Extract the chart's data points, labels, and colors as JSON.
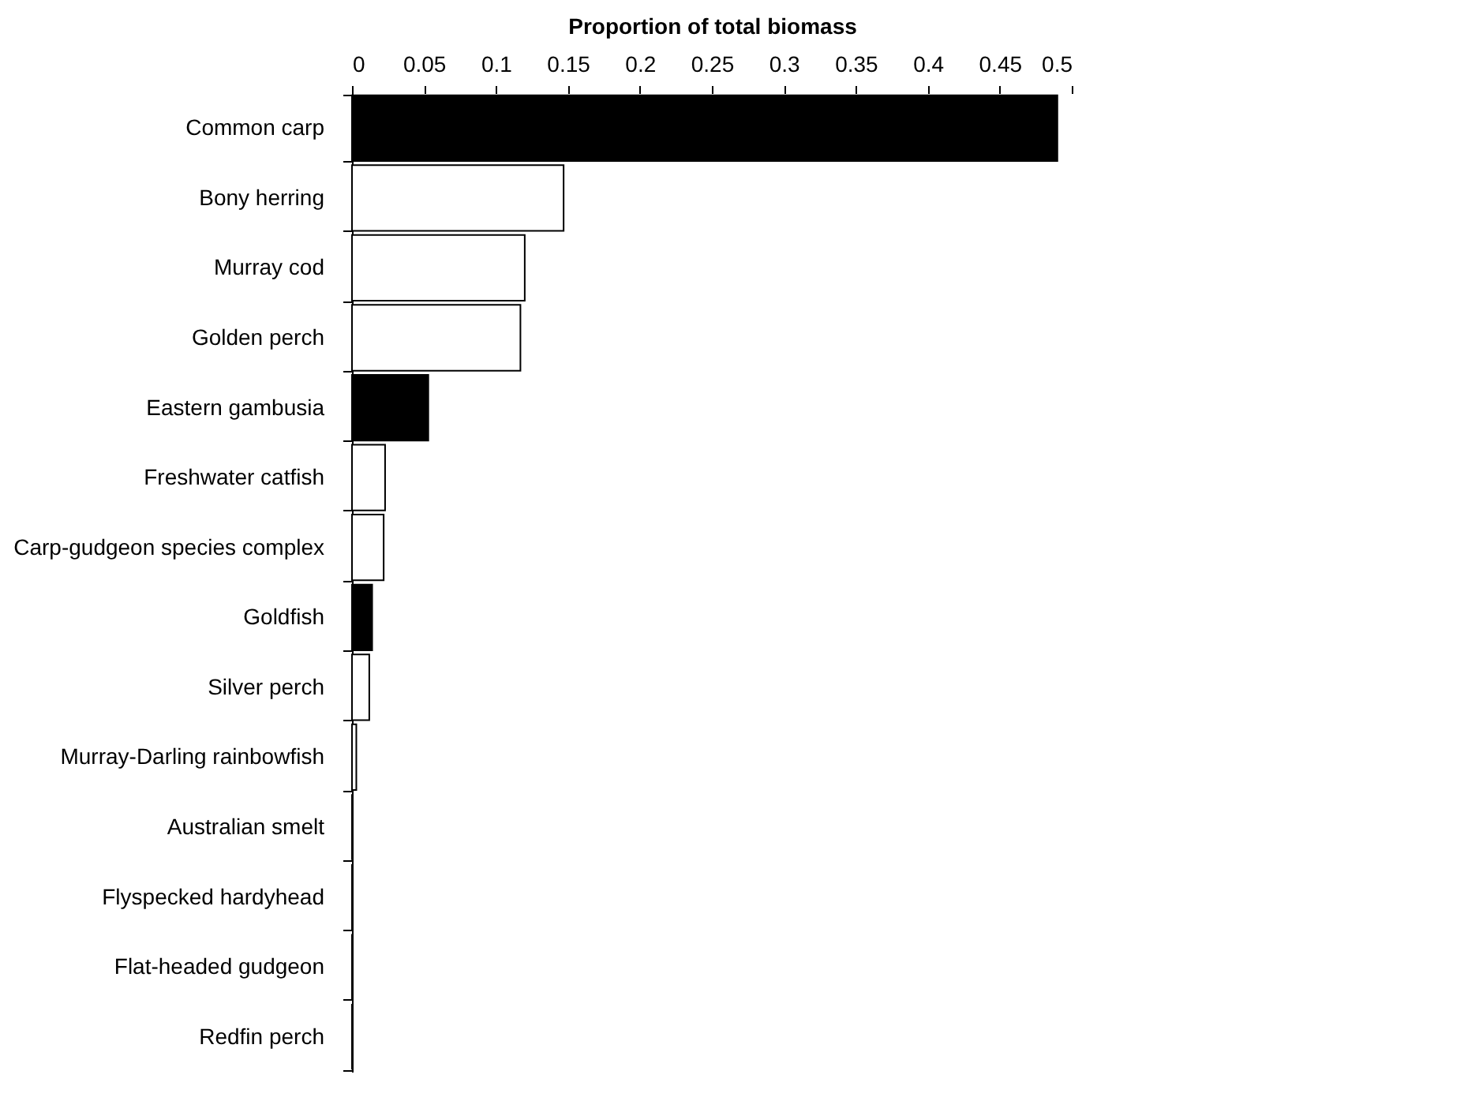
{
  "chart_data": {
    "type": "bar",
    "orientation": "horizontal",
    "xlabel": "Proportion of total biomass",
    "categories": [
      "Common carp",
      "Bony herring",
      "Murray cod",
      "Golden perch",
      "Eastern gambusia",
      "Freshwater catfish",
      "Carp-gudgeon species complex",
      "Goldfish",
      "Silver perch",
      "Murray-Darling rainbowfish",
      "Australian smelt",
      "Flyspecked hardyhead",
      "Flat-headed gudgeon",
      "Redfin perch"
    ],
    "values": [
      0.49,
      0.147,
      0.12,
      0.117,
      0.053,
      0.023,
      0.022,
      0.014,
      0.012,
      0.003,
      0,
      0,
      0,
      0
    ],
    "colors": [
      "#000000",
      "#ffffff",
      "#ffffff",
      "#ffffff",
      "#000000",
      "#ffffff",
      "#ffffff",
      "#000000",
      "#ffffff",
      "#ffffff",
      "#ffffff",
      "#ffffff",
      "#ffffff",
      "#ffffff"
    ],
    "xlim": [
      0,
      0.5
    ],
    "xticks": [
      0,
      0.05,
      0.1,
      0.15,
      0.2,
      0.25,
      0.3,
      0.35,
      0.4,
      0.45,
      0.5
    ],
    "grid": false
  }
}
